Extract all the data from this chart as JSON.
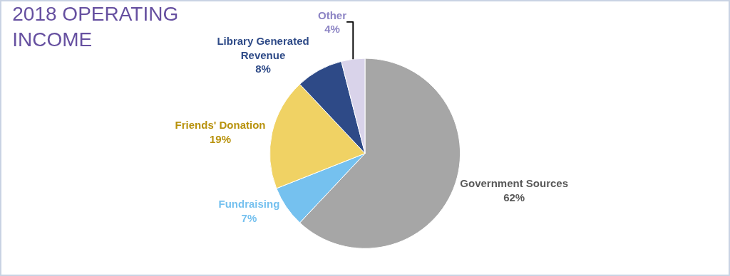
{
  "chart_data": {
    "type": "pie",
    "title": "2018 OPERATING\nINCOME",
    "categories": [
      "Government Sources",
      "Fundraising",
      "Friends' Donation",
      "Library Generated\nRevenue",
      "Other"
    ],
    "values": [
      62,
      7,
      19,
      8,
      4
    ],
    "value_labels": [
      "62%",
      "7%",
      "19%",
      "8%",
      "4%"
    ],
    "colors": [
      "#a6a6a6",
      "#75c1ef",
      "#f0d264",
      "#2e4a87",
      "#d9d3ea"
    ],
    "legend": false
  }
}
